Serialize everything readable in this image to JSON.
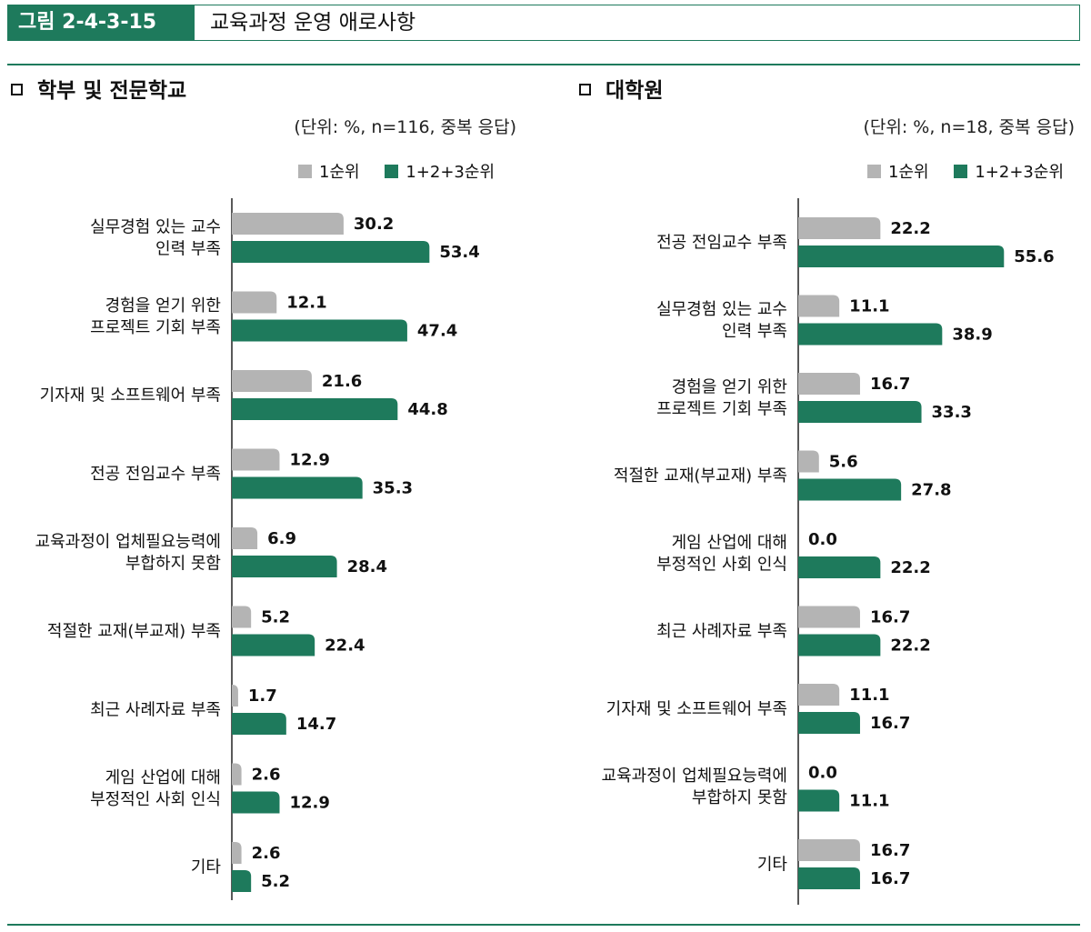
{
  "figure": {
    "number": "그림 2-4-3-15",
    "title": "교육과정 운영 애로사항"
  },
  "colors": {
    "accent": "#1e7a5c",
    "series_first": "#b4b4b4",
    "series_total": "#1e7a5c"
  },
  "chart_data": [
    {
      "type": "bar",
      "orientation": "horizontal",
      "title": "학부 및 전문학교",
      "note": "(단위: %, n=116, 중복 응답)",
      "xlim": [
        0,
        60
      ],
      "categories": [
        [
          "실무경험 있는 교수",
          "인력 부족"
        ],
        [
          "경험을 얻기 위한",
          "프로젝트 기회 부족"
        ],
        [
          "기자재 및 소프트웨어 부족"
        ],
        [
          "전공 전임교수 부족"
        ],
        [
          "교육과정이 업체필요능력에",
          "부합하지 못함"
        ],
        [
          "적절한 교재(부교재) 부족"
        ],
        [
          "최근 사례자료 부족"
        ],
        [
          "게임 산업에 대해",
          "부정적인 사회 인식"
        ],
        [
          "기타"
        ]
      ],
      "series": [
        {
          "name": "1순위",
          "color": "#b4b4b4",
          "values": [
            30.2,
            12.1,
            21.6,
            12.9,
            6.9,
            5.2,
            1.7,
            2.6,
            2.6
          ],
          "labels": [
            "30.2",
            "12.1",
            "21.6",
            "12.9",
            "6.9",
            "5.2",
            "1.7",
            "2.6",
            "2.6"
          ]
        },
        {
          "name": "1+2+3순위",
          "color": "#1e7a5c",
          "values": [
            53.4,
            47.4,
            44.8,
            35.3,
            28.4,
            22.4,
            14.7,
            12.9,
            5.2
          ],
          "labels": [
            "53.4",
            "47.4",
            "44.8",
            "35.3",
            "28.4",
            "22.4",
            "14.7",
            "12.9",
            "5.2"
          ]
        }
      ]
    },
    {
      "type": "bar",
      "orientation": "horizontal",
      "title": "대학원",
      "note": "(단위: %, n=18, 중복 응답)",
      "xlim": [
        0,
        60
      ],
      "categories": [
        [
          "전공 전임교수 부족"
        ],
        [
          "실무경험 있는 교수",
          "인력 부족"
        ],
        [
          "경험을 얻기 위한",
          "프로젝트 기회 부족"
        ],
        [
          "적절한 교재(부교재) 부족"
        ],
        [
          "게임 산업에 대해",
          "부정적인 사회 인식"
        ],
        [
          "최근 사례자료 부족"
        ],
        [
          "기자재 및 소프트웨어 부족"
        ],
        [
          "교육과정이 업체필요능력에",
          "부합하지 못함"
        ],
        [
          "기타"
        ]
      ],
      "series": [
        {
          "name": "1순위",
          "color": "#b4b4b4",
          "values": [
            22.2,
            11.1,
            16.7,
            5.6,
            0.0,
            16.7,
            11.1,
            0.0,
            16.7
          ],
          "labels": [
            "22.2",
            "11.1",
            "16.7",
            "5.6",
            "0.0",
            "16.7",
            "11.1",
            "0.0",
            "16.7"
          ]
        },
        {
          "name": "1+2+3순위",
          "color": "#1e7a5c",
          "values": [
            55.6,
            38.9,
            33.3,
            27.8,
            22.2,
            22.2,
            16.7,
            11.1,
            16.7
          ],
          "labels": [
            "55.6",
            "38.9",
            "33.3",
            "27.8",
            "22.2",
            "22.2",
            "16.7",
            "11.1",
            "16.7"
          ]
        }
      ]
    }
  ]
}
